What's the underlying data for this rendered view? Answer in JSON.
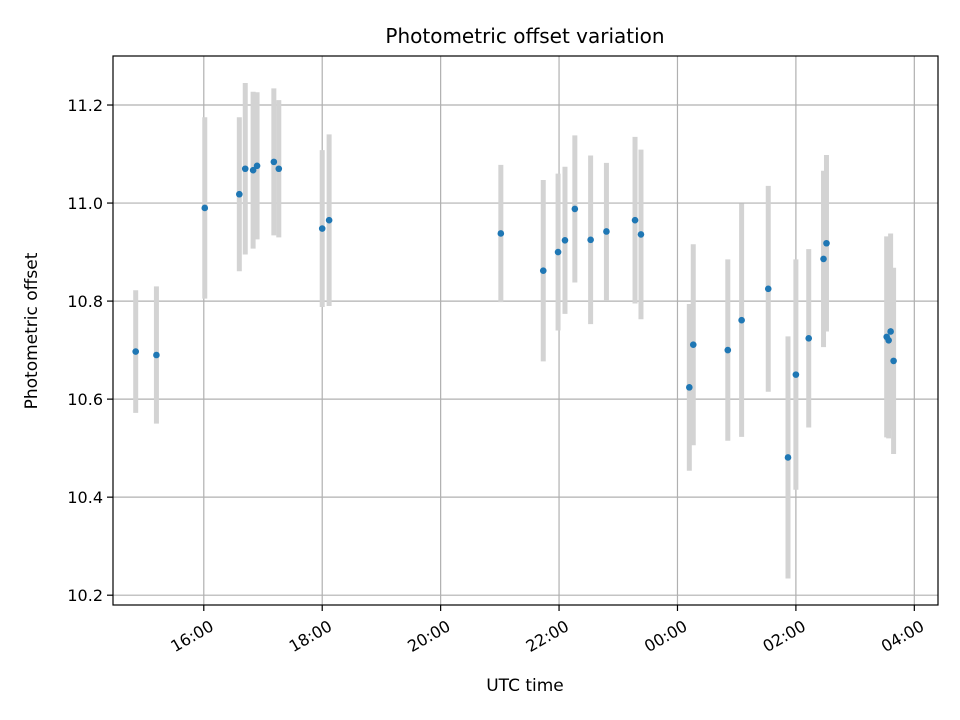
{
  "chart_data": {
    "type": "scatter",
    "title": "Photometric offset variation",
    "xlabel": "UTC time",
    "ylabel": "Photometric offset",
    "x_unit": "UTC time",
    "xlim": [
      "14:28",
      "04:24"
    ],
    "ylim": [
      10.18,
      11.3
    ],
    "grid": true,
    "x_ticks": [
      "16:00",
      "18:00",
      "20:00",
      "22:00",
      "00:00",
      "02:00",
      "04:00"
    ],
    "y_ticks": [
      10.2,
      10.4,
      10.6,
      10.8,
      11.0,
      11.2
    ],
    "y_tick_labels": [
      "10.2",
      "10.4",
      "10.6",
      "10.8",
      "11.0",
      "11.2"
    ],
    "point_color": "#1f77b4",
    "errorbar_color": "#d3d3d3",
    "points": [
      {
        "x": "14:51",
        "y": 10.697,
        "err": 0.125
      },
      {
        "x": "15:12",
        "y": 10.69,
        "err": 0.14
      },
      {
        "x": "16:01",
        "y": 10.99,
        "err": 0.185
      },
      {
        "x": "16:36",
        "y": 11.018,
        "err": 0.157
      },
      {
        "x": "16:42",
        "y": 11.07,
        "err": 0.175
      },
      {
        "x": "16:50",
        "y": 11.067,
        "err": 0.16
      },
      {
        "x": "16:54",
        "y": 11.076,
        "err": 0.15
      },
      {
        "x": "17:11",
        "y": 11.084,
        "err": 0.15
      },
      {
        "x": "17:16",
        "y": 11.07,
        "err": 0.14
      },
      {
        "x": "18:00",
        "y": 10.948,
        "err": 0.16
      },
      {
        "x": "18:07",
        "y": 10.965,
        "err": 0.175
      },
      {
        "x": "21:01",
        "y": 10.938,
        "err": 0.14
      },
      {
        "x": "21:44",
        "y": 10.862,
        "err": 0.185
      },
      {
        "x": "21:59",
        "y": 10.9,
        "err": 0.16
      },
      {
        "x": "22:06",
        "y": 10.924,
        "err": 0.15
      },
      {
        "x": "22:16",
        "y": 10.988,
        "err": 0.15
      },
      {
        "x": "22:32",
        "y": 10.925,
        "err": 0.172
      },
      {
        "x": "22:48",
        "y": 10.942,
        "err": 0.14
      },
      {
        "x": "23:17",
        "y": 10.965,
        "err": 0.17
      },
      {
        "x": "23:23",
        "y": 10.936,
        "err": 0.173
      },
      {
        "x": "00:12",
        "y": 10.624,
        "err": 0.17
      },
      {
        "x": "00:16",
        "y": 10.711,
        "err": 0.205
      },
      {
        "x": "00:51",
        "y": 10.7,
        "err": 0.185
      },
      {
        "x": "01:05",
        "y": 10.761,
        "err": 0.238
      },
      {
        "x": "01:32",
        "y": 10.825,
        "err": 0.21
      },
      {
        "x": "01:52",
        "y": 10.481,
        "err": 0.247
      },
      {
        "x": "02:00",
        "y": 10.65,
        "err": 0.235
      },
      {
        "x": "02:13",
        "y": 10.724,
        "err": 0.182
      },
      {
        "x": "02:28",
        "y": 10.886,
        "err": 0.18
      },
      {
        "x": "02:31",
        "y": 10.918,
        "err": 0.18
      },
      {
        "x": "03:32",
        "y": 10.727,
        "err": 0.205
      },
      {
        "x": "03:34",
        "y": 10.72,
        "err": 0.2
      },
      {
        "x": "03:36",
        "y": 10.738,
        "err": 0.2
      },
      {
        "x": "03:39",
        "y": 10.678,
        "err": 0.19
      }
    ]
  }
}
